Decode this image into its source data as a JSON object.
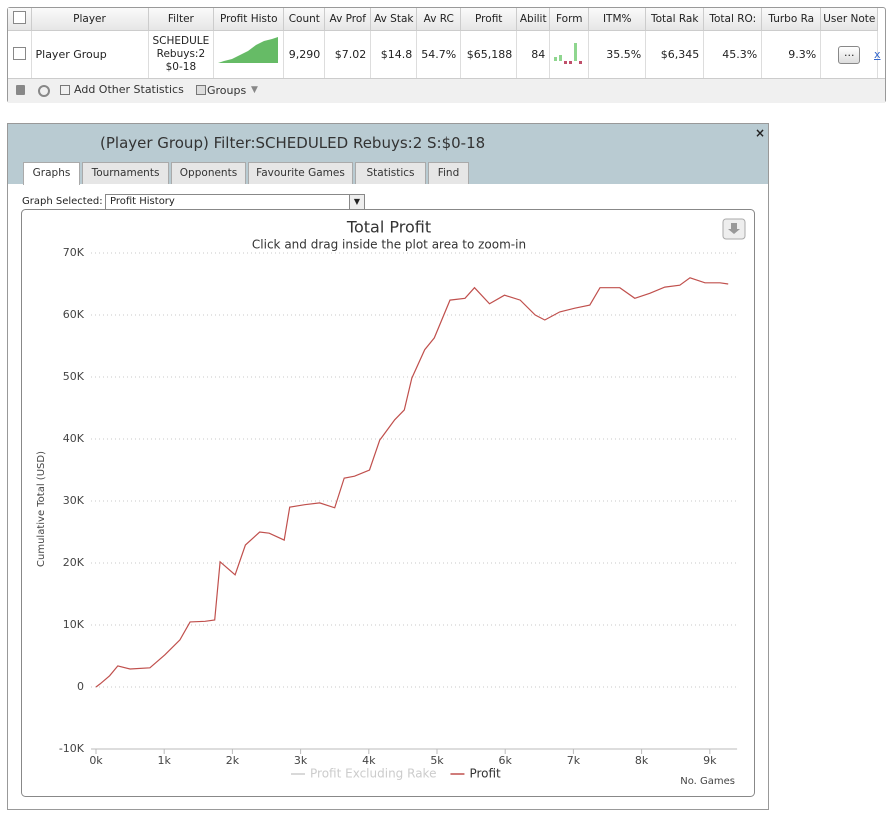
{
  "grid_table": {
    "headers": [
      "Player",
      "Filter",
      "Profit Histo",
      "Count",
      "Av Prof",
      "Av Stak",
      "Av RC",
      "Profit",
      "Abilit",
      "Form",
      "ITM%",
      "Total Rak",
      "Total RO:",
      "Turbo Ra",
      "User Note"
    ],
    "row": {
      "player": "Player Group",
      "filter": [
        "SCHEDULE",
        "Rebuys:2",
        "$0-18"
      ],
      "count": "9,290",
      "av_profit": "$7.02",
      "av_stake": "$14.8",
      "av_roi": "54.7%",
      "profit": "$65,188",
      "ability": "84",
      "itm": "35.5%",
      "total_rake": "$6,345",
      "total_roi": "45.3%",
      "turbo_rate": "9.3%",
      "note_button": "..."
    },
    "toolbar": [
      "Add Other Statistics",
      "Groups"
    ]
  },
  "window": {
    "title": "(Player Group) Filter:SCHEDULED Rebuys:2 S:$0-18",
    "tabs": [
      "Graphs",
      "Tournaments",
      "Opponents",
      "Favourite Games",
      "Statistics",
      "Find"
    ],
    "graph_selected_label": "Graph Selected:",
    "graph_selected": "Profit History"
  },
  "chart_data": {
    "type": "line",
    "title": "Total Profit",
    "subtitle": "Click and drag inside the plot area to zoom-in",
    "y_label": "Cumulative Total (USD)",
    "x_label": "No. Games",
    "x": [
      0,
      60,
      200,
      320,
      500,
      790,
      1010,
      1230,
      1380,
      1600,
      1740,
      1820,
      2040,
      2190,
      2400,
      2540,
      2760,
      2840,
      3060,
      3280,
      3500,
      3640,
      3790,
      4010,
      4160,
      4380,
      4520,
      4630,
      4820,
      4960,
      5190,
      5410,
      5550,
      5770,
      5990,
      6220,
      6440,
      6580,
      6800,
      7020,
      7240,
      7390,
      7680,
      7900,
      8120,
      8340,
      8560,
      8710,
      8930,
      9150,
      9270
    ],
    "series": [
      {
        "name": "Profit Excluding Rake",
        "color": "#cccccc",
        "visible": false
      },
      {
        "name": "Profit",
        "color": "#c0504d",
        "visible": true,
        "values": [
          0,
          500,
          1800,
          3400,
          2900,
          3100,
          5200,
          7600,
          10500,
          10600,
          10800,
          20200,
          18100,
          22900,
          25000,
          24800,
          23700,
          29000,
          29400,
          29700,
          28900,
          33700,
          34000,
          35000,
          39800,
          43100,
          44700,
          49800,
          54400,
          56300,
          62400,
          62700,
          64400,
          61800,
          63200,
          62400,
          60000,
          59200,
          60500,
          61100,
          61600,
          64400,
          64400,
          62700,
          63500,
          64500,
          64800,
          66000,
          65200,
          65200,
          65000
        ]
      }
    ],
    "xlim": [
      0,
      9400
    ],
    "ylim": [
      -10000,
      70000
    ],
    "xticks": [
      {
        "value": 0,
        "label": "0k"
      },
      {
        "value": 1000,
        "label": "1k"
      },
      {
        "value": 2000,
        "label": "2k"
      },
      {
        "value": 3000,
        "label": "3k"
      },
      {
        "value": 4000,
        "label": "4k"
      },
      {
        "value": 5000,
        "label": "5k"
      },
      {
        "value": 6000,
        "label": "6k"
      },
      {
        "value": 7000,
        "label": "7k"
      },
      {
        "value": 8000,
        "label": "8k"
      },
      {
        "value": 9000,
        "label": "9k"
      }
    ],
    "yticks": [
      {
        "value": -10000,
        "label": "-10K"
      },
      0,
      {
        "value": 10000,
        "label": "10K"
      },
      {
        "value": 20000,
        "label": "20K"
      },
      {
        "value": 30000,
        "label": "30K"
      },
      {
        "value": 40000,
        "label": "40K"
      },
      {
        "value": 50000,
        "label": "50K"
      },
      {
        "value": 60000,
        "label": "60K"
      },
      {
        "value": 70000,
        "label": "70K"
      }
    ],
    "grid": true
  }
}
